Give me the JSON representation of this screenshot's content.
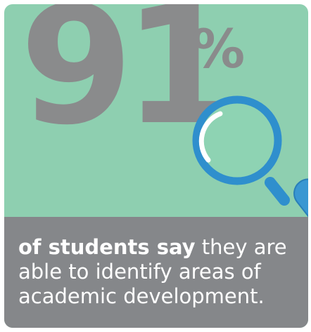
{
  "stat": {
    "number": "91",
    "unit": "%"
  },
  "caption": {
    "lead": "of students say",
    "line1_rest": " they are",
    "line2": "able to identify areas of",
    "line3": "academic development."
  },
  "icons": {
    "magnifier": "magnifying-glass-icon"
  },
  "colors": {
    "background": "#8ecfb0",
    "number": "#8a8b8c",
    "panel": "#85878a",
    "magnifier_ring": "#2f8fcd",
    "magnifier_handle": "#3a97d2",
    "text": "#ffffff"
  }
}
